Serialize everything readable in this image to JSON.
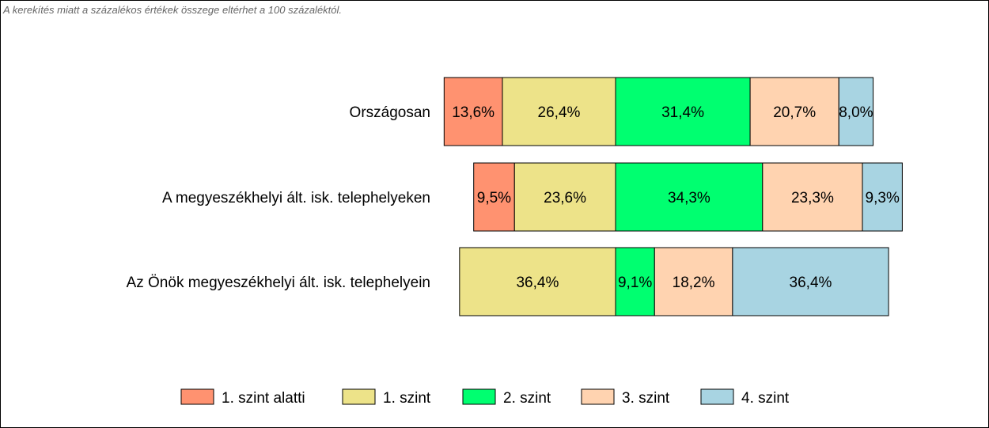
{
  "note": "A kerekítés miatt a  százalékos értékek összege eltérhet a 100 százaléktól.",
  "chart_data": {
    "type": "bar",
    "orientation": "horizontal",
    "stacked": "diverging",
    "categories": [
      "Országosan",
      "A megyeszékhelyi ált. isk. telephelyeken",
      "Az Önök megyeszékhelyi ált. isk. telephelyein"
    ],
    "series": [
      {
        "name": "1. szint alatti",
        "color": "#ff9270",
        "values": [
          13.6,
          9.5,
          0
        ],
        "labels": [
          "13,6%",
          "9,5%",
          ""
        ]
      },
      {
        "name": "1. szint",
        "color": "#ede389",
        "values": [
          26.4,
          23.6,
          36.4
        ],
        "labels": [
          "26,4%",
          "23,6%",
          "36,4%"
        ]
      },
      {
        "name": "2. szint",
        "color": "#00ff70",
        "values": [
          31.4,
          34.3,
          9.1
        ],
        "labels": [
          "31,4%",
          "34,3%",
          "9,1%"
        ]
      },
      {
        "name": "3. szint",
        "color": "#ffd3b0",
        "values": [
          20.7,
          23.3,
          18.2
        ],
        "labels": [
          "20,7%",
          "23,3%",
          "18,2%"
        ]
      },
      {
        "name": "4. szint",
        "color": "#a8d4e2",
        "values": [
          8.0,
          9.3,
          36.4
        ],
        "labels": [
          "8,0%",
          "9,3%",
          "36,4%"
        ]
      }
    ],
    "baseline_after_series": "1. szint",
    "legend_position": "bottom",
    "grid": false
  }
}
